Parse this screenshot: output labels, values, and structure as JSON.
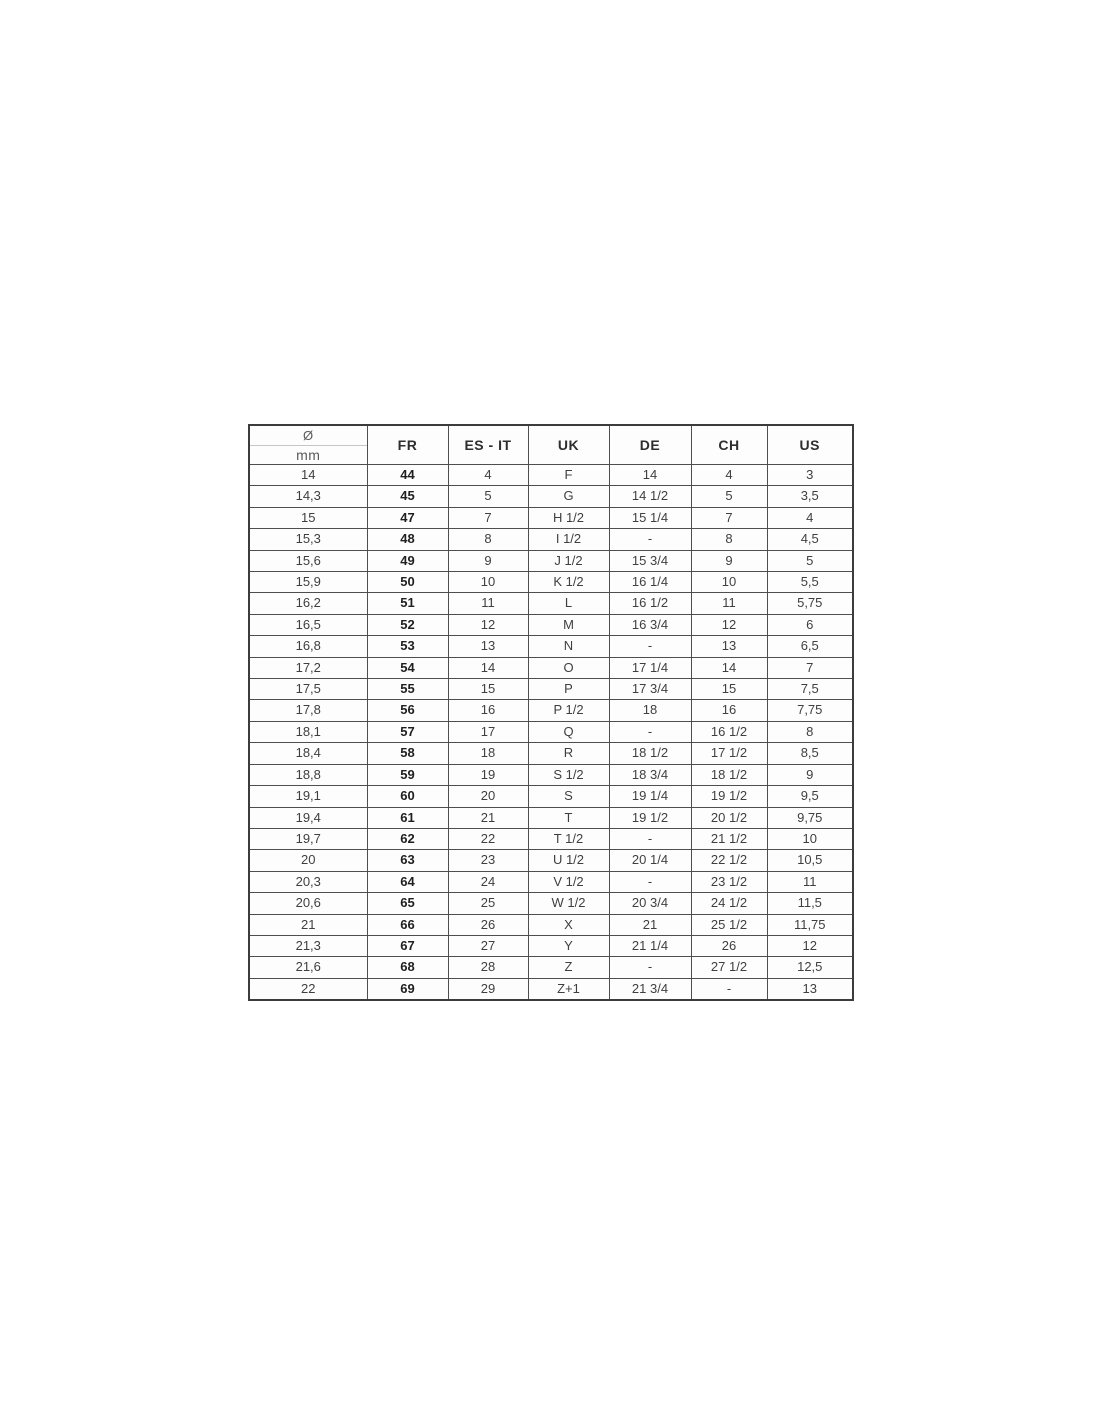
{
  "chart_data": {
    "type": "table",
    "header": {
      "diameter_symbol": "Ø",
      "diameter_unit": "mm",
      "columns": [
        "FR",
        "ES - IT",
        "UK",
        "DE",
        "CH",
        "US"
      ]
    },
    "columns_full": [
      "Ø mm",
      "FR",
      "ES - IT",
      "UK",
      "DE",
      "CH",
      "US"
    ],
    "rows": [
      [
        "14",
        "44",
        "4",
        "F",
        "14",
        "4",
        "3"
      ],
      [
        "14,3",
        "45",
        "5",
        "G",
        "14 1/2",
        "5",
        "3,5"
      ],
      [
        "15",
        "47",
        "7",
        "H 1/2",
        "15 1/4",
        "7",
        "4"
      ],
      [
        "15,3",
        "48",
        "8",
        "I 1/2",
        "-",
        "8",
        "4,5"
      ],
      [
        "15,6",
        "49",
        "9",
        "J 1/2",
        "15 3/4",
        "9",
        "5"
      ],
      [
        "15,9",
        "50",
        "10",
        "K 1/2",
        "16 1/4",
        "10",
        "5,5"
      ],
      [
        "16,2",
        "51",
        "11",
        "L",
        "16 1/2",
        "11",
        "5,75"
      ],
      [
        "16,5",
        "52",
        "12",
        "M",
        "16 3/4",
        "12",
        "6"
      ],
      [
        "16,8",
        "53",
        "13",
        "N",
        "-",
        "13",
        "6,5"
      ],
      [
        "17,2",
        "54",
        "14",
        "O",
        "17 1/4",
        "14",
        "7"
      ],
      [
        "17,5",
        "55",
        "15",
        "P",
        "17 3/4",
        "15",
        "7,5"
      ],
      [
        "17,8",
        "56",
        "16",
        "P 1/2",
        "18",
        "16",
        "7,75"
      ],
      [
        "18,1",
        "57",
        "17",
        "Q",
        "-",
        "16 1/2",
        "8"
      ],
      [
        "18,4",
        "58",
        "18",
        "R",
        "18 1/2",
        "17 1/2",
        "8,5"
      ],
      [
        "18,8",
        "59",
        "19",
        "S 1/2",
        "18 3/4",
        "18 1/2",
        "9"
      ],
      [
        "19,1",
        "60",
        "20",
        "S",
        "19 1/4",
        "19 1/2",
        "9,5"
      ],
      [
        "19,4",
        "61",
        "21",
        "T",
        "19 1/2",
        "20 1/2",
        "9,75"
      ],
      [
        "19,7",
        "62",
        "22",
        "T 1/2",
        "-",
        "21 1/2",
        "10"
      ],
      [
        "20",
        "63",
        "23",
        "U 1/2",
        "20 1/4",
        "22 1/2",
        "10,5"
      ],
      [
        "20,3",
        "64",
        "24",
        "V 1/2",
        "-",
        "23 1/2",
        "11"
      ],
      [
        "20,6",
        "65",
        "25",
        "W 1/2",
        "20 3/4",
        "24 1/2",
        "11,5"
      ],
      [
        "21",
        "66",
        "26",
        "X",
        "21",
        "25 1/2",
        "11,75"
      ],
      [
        "21,3",
        "67",
        "27",
        "Y",
        "21 1/4",
        "26",
        "12"
      ],
      [
        "21,6",
        "68",
        "28",
        "Z",
        "-",
        "27 1/2",
        "12,5"
      ],
      [
        "22",
        "69",
        "29",
        "Z+1",
        "21 3/4",
        "-",
        "13"
      ]
    ],
    "layout": {
      "grid": true,
      "bold_column": "FR",
      "border_color": "#3c3c3c",
      "text_color": "#3f3f3f"
    }
  }
}
